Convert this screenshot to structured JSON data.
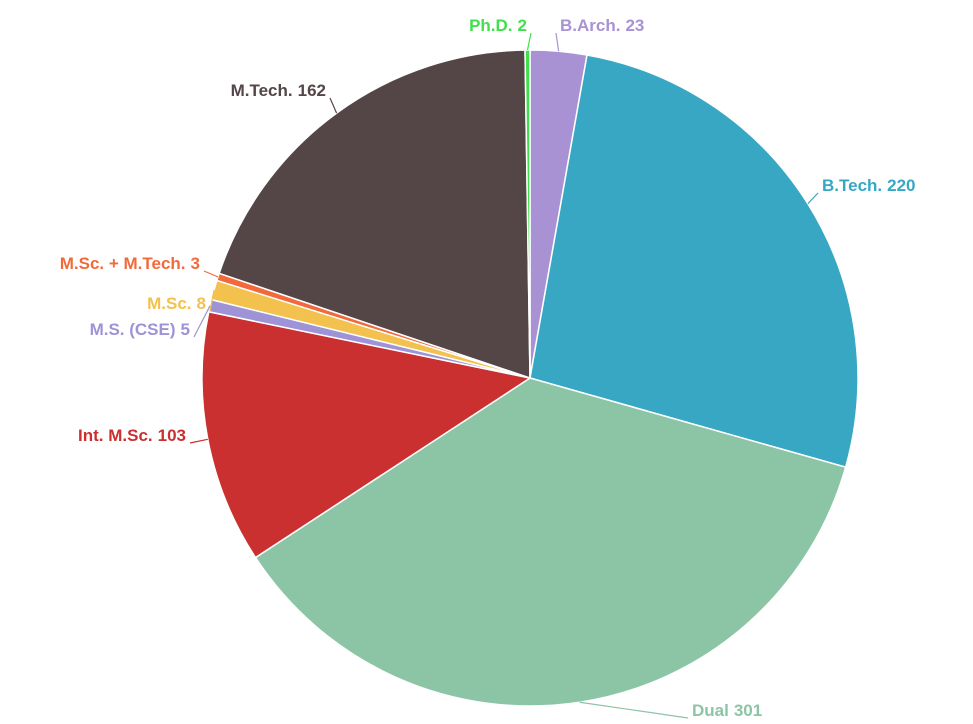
{
  "chart_data": {
    "type": "pie",
    "categories": [
      "B.Arch.",
      "B.Tech.",
      "Dual",
      "Int. M.Sc.",
      "M.S. (CSE)",
      "M.Sc.",
      "M.Sc. + M.Tech.",
      "M.Tech.",
      "Ph.D."
    ],
    "values": [
      23,
      220,
      301,
      103,
      5,
      8,
      3,
      162,
      2
    ],
    "colors": [
      "#a992d4",
      "#38a7c4",
      "#8cc4a6",
      "#c9302f",
      "#9e93d6",
      "#f2c14e",
      "#f26a3c",
      "#544646",
      "#3fe04a"
    ]
  }
}
